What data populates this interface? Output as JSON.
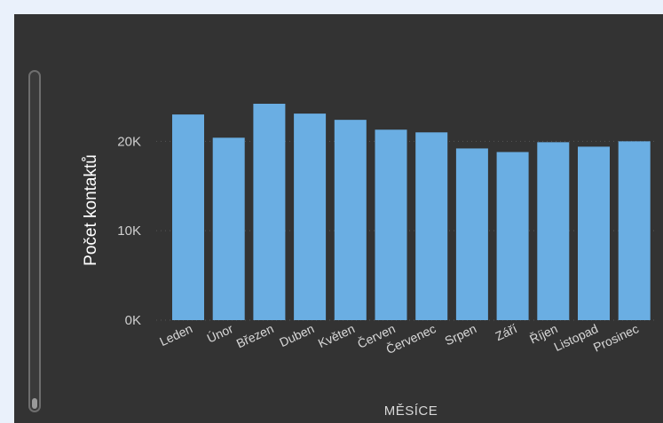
{
  "colors": {
    "background": "#eaf1fb",
    "panel": "#333333",
    "bar": "#6aaee3",
    "grid": "#555555"
  },
  "chart_data": {
    "type": "bar",
    "title": "",
    "xlabel": "MĚSÍCE",
    "ylabel": "Počet kontaktů",
    "categories": [
      "Leden",
      "Únor",
      "Březen",
      "Duben",
      "Květen",
      "Červen",
      "Červenec",
      "Srpen",
      "Září",
      "Říjen",
      "Listopad",
      "Prosinec"
    ],
    "values": [
      23000,
      20400,
      24200,
      23100,
      22400,
      21300,
      21000,
      19200,
      18800,
      19900,
      19400,
      20000
    ],
    "ylim": [
      0,
      24200
    ],
    "yticks": [
      0,
      10000,
      20000
    ],
    "ytick_labels": [
      "0K",
      "10K",
      "20K"
    ],
    "grid": true,
    "legend": "none"
  }
}
